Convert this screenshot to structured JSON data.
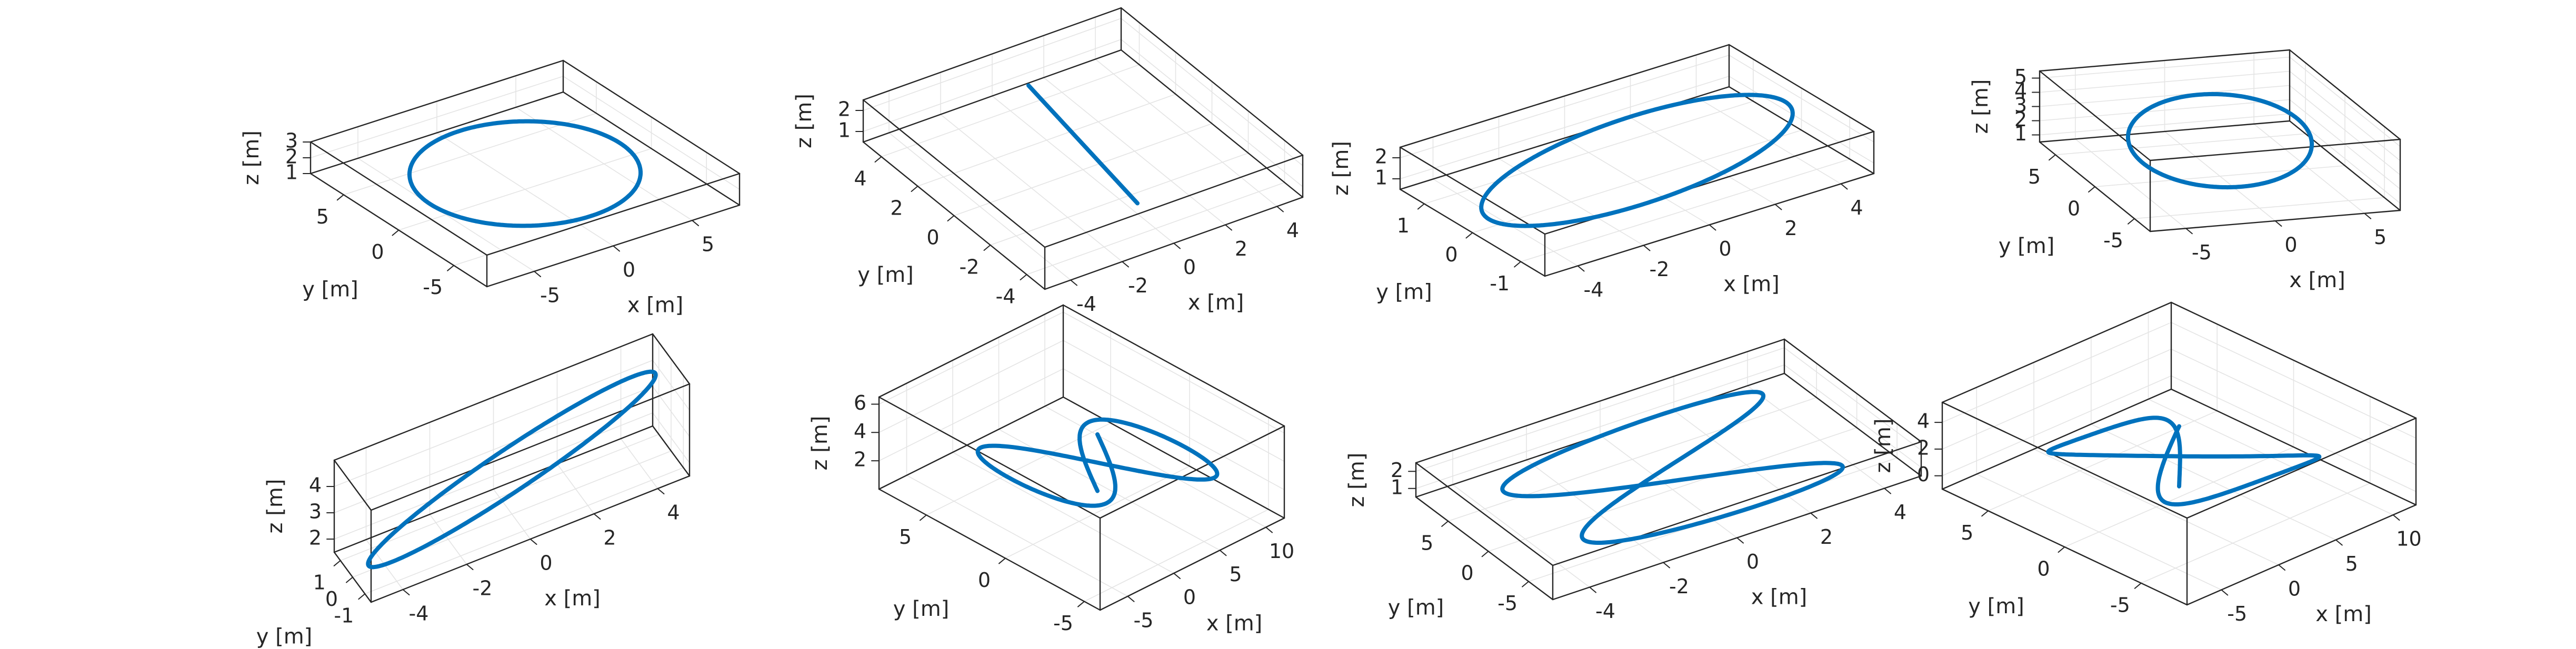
{
  "chart_data": [
    {
      "type": "line3d",
      "xlabel": "x [m]",
      "ylabel": "y [m]",
      "zlabel": "z [m]",
      "xlim": [
        -8,
        8
      ],
      "ylim": [
        -8,
        8
      ],
      "zlim": [
        1,
        3
      ],
      "xticks": [
        "-5",
        "0",
        "5"
      ],
      "xtickvals": [
        -5,
        0,
        5
      ],
      "yticks": [
        "-5",
        "0",
        "5"
      ],
      "ytickvals": [
        -5,
        0,
        5
      ],
      "zticks": [
        "1",
        "2",
        "3"
      ],
      "ztickvals": [
        1,
        2,
        3
      ],
      "series": [
        {
          "curve": "circle-horizontal",
          "radius": 6,
          "height": 2
        }
      ]
    },
    {
      "type": "line3d",
      "xlabel": "x [m]",
      "ylabel": "y [m]",
      "zlabel": "z [m]",
      "xlim": [
        -5,
        5
      ],
      "ylim": [
        -5,
        5
      ],
      "zlim": [
        0.5,
        2.5
      ],
      "xticks": [
        "-4",
        "-2",
        "0",
        "2",
        "4"
      ],
      "xtickvals": [
        -4,
        -2,
        0,
        2,
        4
      ],
      "yticks": [
        "-4",
        "-2",
        "0",
        "2",
        "4"
      ],
      "ytickvals": [
        -4,
        -2,
        0,
        2,
        4
      ],
      "zticks": [
        "1",
        "2"
      ],
      "ztickvals": [
        1,
        2
      ],
      "series": [
        {
          "curve": "line-segment",
          "from": [
            0,
            -3,
            1.0
          ],
          "to": [
            0,
            3,
            2.4
          ]
        }
      ]
    },
    {
      "type": "line3d",
      "xlabel": "x [m]",
      "ylabel": "y [m]",
      "zlabel": "z [m]",
      "xlim": [
        -5,
        5
      ],
      "ylim": [
        -1.5,
        1.5
      ],
      "zlim": [
        0.5,
        2.5
      ],
      "xticks": [
        "-4",
        "-2",
        "0",
        "2",
        "4"
      ],
      "xtickvals": [
        -4,
        -2,
        0,
        2,
        4
      ],
      "yticks": [
        "-1",
        "0",
        "1"
      ],
      "ytickvals": [
        -1,
        0,
        1
      ],
      "zticks": [
        "1",
        "2"
      ],
      "ztickvals": [
        1,
        2
      ],
      "series": [
        {
          "curve": "ellipse-tilted",
          "a": 4.5,
          "b": 1,
          "zc": 1.5,
          "dz": 0.6
        }
      ]
    },
    {
      "type": "line3d",
      "xlabel": "x [m]",
      "ylabel": "y [m]",
      "zlabel": "z [m]",
      "xlim": [
        -7,
        7
      ],
      "ylim": [
        -7,
        7
      ],
      "zlim": [
        0.5,
        5.5
      ],
      "xticks": [
        "-5",
        "0",
        "5"
      ],
      "xtickvals": [
        -5,
        0,
        5
      ],
      "yticks": [
        "-5",
        "0",
        "5"
      ],
      "ytickvals": [
        -5,
        0,
        5
      ],
      "zticks": [
        "1",
        "2",
        "3",
        "4",
        "5"
      ],
      "ztickvals": [
        1,
        2,
        3,
        4,
        5
      ],
      "series": [
        {
          "curve": "circle-tilted",
          "radius": 5,
          "zc": 3,
          "dz": 2
        }
      ]
    },
    {
      "type": "line3d",
      "xlabel": "x [m]",
      "ylabel": "y [m]",
      "zlabel": "z [m]",
      "xlim": [
        -5,
        5
      ],
      "ylim": [
        -1.5,
        1.5
      ],
      "zlim": [
        1.5,
        5
      ],
      "xticks": [
        "-4",
        "-2",
        "0",
        "2",
        "4"
      ],
      "xtickvals": [
        -4,
        -2,
        0,
        2,
        4
      ],
      "yticks": [
        "-1",
        "0",
        "1"
      ],
      "ytickvals": [
        -1,
        0,
        1
      ],
      "zticks": [
        "2",
        "3",
        "4"
      ],
      "ztickvals": [
        2,
        3,
        4
      ],
      "series": [
        {
          "curve": "ellipse-tilted",
          "a": 4.5,
          "b": 1,
          "zc": 3.2,
          "dz": 1.5
        }
      ]
    },
    {
      "type": "line3d",
      "xlabel": "x [m]",
      "ylabel": "y [m]",
      "zlabel": "z [m]",
      "xlim": [
        -8,
        12
      ],
      "ylim": [
        -6,
        8
      ],
      "zlim": [
        0,
        6.5
      ],
      "xticks": [
        "-5",
        "0",
        "5",
        "10"
      ],
      "xtickvals": [
        -5,
        0,
        5,
        10
      ],
      "yticks": [
        "-5",
        "0",
        "5"
      ],
      "ytickvals": [
        -5,
        0,
        5
      ],
      "zticks": [
        "2",
        "4",
        "6"
      ],
      "ztickvals": [
        2,
        4,
        6
      ],
      "series": [
        {
          "curve": "lemniscate-climbing"
        }
      ]
    },
    {
      "type": "line3d",
      "xlabel": "x [m]",
      "ylabel": "y [m]",
      "zlabel": "z [m]",
      "xlim": [
        -5,
        5
      ],
      "ylim": [
        -8,
        9
      ],
      "zlim": [
        0.5,
        2.5
      ],
      "xticks": [
        "-4",
        "-2",
        "0",
        "2",
        "4"
      ],
      "xtickvals": [
        -4,
        -2,
        0,
        2,
        4
      ],
      "yticks": [
        "-5",
        "0",
        "5"
      ],
      "ytickvals": [
        -5,
        0,
        5
      ],
      "zticks": [
        "1",
        "2"
      ],
      "ztickvals": [
        1,
        2
      ],
      "series": [
        {
          "curve": "figure-eight",
          "a": 7,
          "b": 3.5,
          "zc": 1.5,
          "dz": 0.5
        }
      ]
    },
    {
      "type": "line3d",
      "xlabel": "x [m]",
      "ylabel": "y [m]",
      "zlabel": "z [m]",
      "xlim": [
        -8,
        12
      ],
      "ylim": [
        -8,
        8
      ],
      "zlim": [
        -1,
        5.5
      ],
      "xticks": [
        "-5",
        "0",
        "5",
        "10"
      ],
      "xtickvals": [
        -5,
        0,
        5,
        10
      ],
      "yticks": [
        "-5",
        "0",
        "5"
      ],
      "ytickvals": [
        -5,
        0,
        5
      ],
      "zticks": [
        "0",
        "2",
        "4"
      ],
      "ztickvals": [
        0,
        2,
        4
      ],
      "series": [
        {
          "curve": "spiral-figure-eight"
        }
      ]
    }
  ]
}
